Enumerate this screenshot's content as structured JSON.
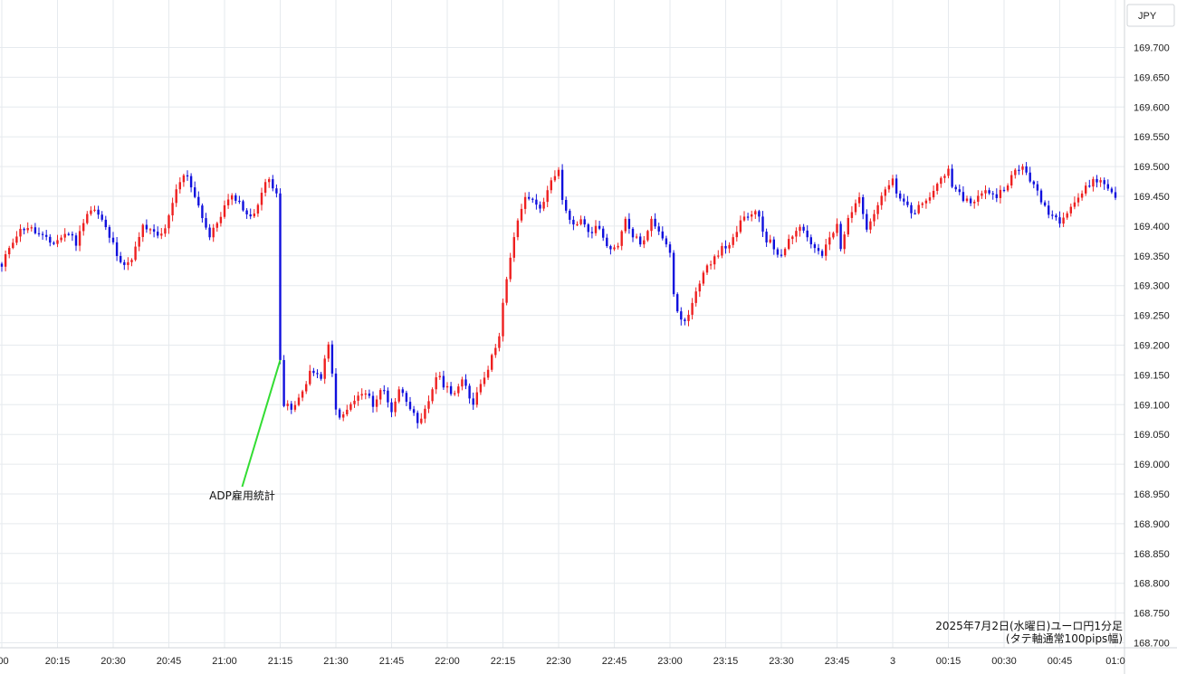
{
  "chart_data": {
    "type": "candlestick",
    "currency": "JPY",
    "caption_line1": "2025年7月2日(水曜日)ユーロ円1分足",
    "caption_line2": "(タテ軸通常100pips幅)",
    "annotation": {
      "label": "ADP雇用統計",
      "time": "21:15",
      "price": 169.175,
      "color": "#33dd33"
    },
    "ylim": [
      168.685,
      169.755
    ],
    "y_ticks": [
      "169.700",
      "169.650",
      "169.600",
      "169.550",
      "169.500",
      "169.450",
      "169.400",
      "169.350",
      "169.300",
      "169.250",
      "169.200",
      "169.150",
      "169.100",
      "169.050",
      "169.000",
      "168.950",
      "168.900",
      "168.850",
      "168.800",
      "168.750",
      "168.700"
    ],
    "x_ticks": [
      ":00",
      "20:15",
      "20:30",
      "20:45",
      "21:00",
      "21:15",
      "21:30",
      "21:45",
      "22:00",
      "22:15",
      "22:30",
      "22:45",
      "23:00",
      "23:15",
      "23:30",
      "23:45",
      "3",
      "00:15",
      "00:30",
      "00:45",
      "01:0"
    ],
    "grid": true,
    "colors": {
      "up": "#ee2020",
      "down": "#1010dd",
      "grid": "#e6eaee",
      "axis": "#d0d4d8"
    },
    "segments": [
      {
        "from": "20:00",
        "to": "21:14",
        "close": [
          169.33,
          169.37,
          169.39,
          169.4,
          169.39,
          169.38,
          169.37,
          169.38,
          169.39,
          169.37,
          169.42,
          169.43,
          169.41,
          169.38,
          169.35,
          169.33,
          169.36,
          169.4,
          169.39,
          169.38,
          169.41,
          169.46,
          169.49,
          169.46,
          169.42,
          169.38,
          169.41,
          169.44,
          169.45,
          169.43,
          169.41,
          169.45,
          169.48,
          169.46
        ]
      },
      {
        "from": "21:15",
        "to": "21:15",
        "close": [
          169.175
        ]
      },
      {
        "from": "21:16",
        "to": "22:14",
        "close": [
          169.1,
          169.09,
          169.12,
          169.16,
          169.14,
          169.2,
          169.07,
          169.09,
          169.11,
          169.12,
          169.1,
          169.13,
          169.09,
          169.13,
          169.1,
          169.06,
          169.1,
          169.15,
          169.13,
          169.12,
          169.14,
          169.1,
          169.14,
          169.17,
          169.22
        ]
      },
      {
        "from": "22:15",
        "to": "22:30",
        "close": [
          169.27,
          169.35,
          169.42,
          169.45,
          169.44,
          169.43,
          169.48,
          169.49
        ]
      },
      {
        "from": "22:31",
        "to": "23:00",
        "close": [
          169.44,
          169.4,
          169.41,
          169.39,
          169.4,
          169.37,
          169.36,
          169.41,
          169.38,
          169.37,
          169.41,
          169.39,
          169.36
        ]
      },
      {
        "from": "23:01",
        "to": "23:05",
        "close": [
          169.28,
          169.24,
          169.25
        ]
      },
      {
        "from": "23:06",
        "to": "23:45",
        "close": [
          169.27,
          169.3,
          169.33,
          169.35,
          169.36,
          169.37,
          169.38,
          169.42,
          169.41,
          169.43,
          169.38,
          169.37,
          169.35,
          169.37,
          169.39,
          169.4,
          169.38,
          169.36,
          169.35,
          169.38,
          169.4
        ]
      },
      {
        "from": "23:46",
        "to": "00:00",
        "close": [
          169.36,
          169.42,
          169.45,
          169.4,
          169.43,
          169.46,
          169.48
        ]
      },
      {
        "from": "00:01",
        "to": "00:15",
        "close": [
          169.45,
          169.44,
          169.42,
          169.43,
          169.44,
          169.46,
          169.48,
          169.5
        ]
      },
      {
        "from": "00:16",
        "to": "00:45",
        "close": [
          169.46,
          169.45,
          169.44,
          169.45,
          169.46,
          169.45,
          169.47,
          169.49,
          169.5,
          169.47,
          169.44,
          169.42,
          169.41
        ]
      },
      {
        "from": "00:46",
        "to": "01:00",
        "close": [
          169.42,
          169.44,
          169.46,
          169.48,
          169.47,
          169.45
        ]
      }
    ]
  }
}
